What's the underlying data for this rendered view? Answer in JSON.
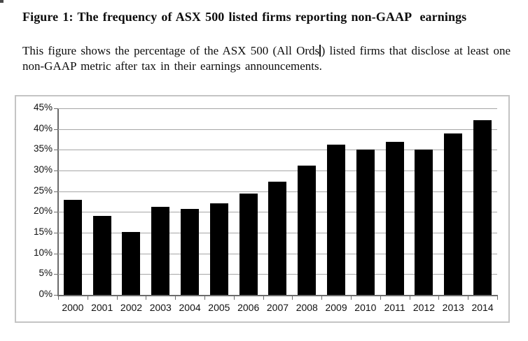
{
  "document": {
    "title": "Figure 1: The frequency of ASX 500 listed firms reporting non-GAAP  earnings",
    "description_part1": "This figure shows the percentage of the ASX 500 (All Ords",
    "description_part2": ") listed firms that disclose at least one non-GAAP metric after tax in their earnings announcements."
  },
  "chart_data": {
    "type": "bar",
    "title": "Figure 1: The frequency of ASX 500 listed firms reporting non-GAAP earnings",
    "subtitle": "This figure shows the percentage of the ASX 500 (All Ords) listed firms that disclose at least one non-GAAP metric after tax in their earnings announcements.",
    "categories": [
      "2000",
      "2001",
      "2002",
      "2003",
      "2004",
      "2005",
      "2006",
      "2007",
      "2008",
      "2009",
      "2010",
      "2011",
      "2012",
      "2013",
      "2014"
    ],
    "values": [
      22.9,
      19.1,
      15.2,
      21.2,
      20.7,
      22.1,
      24.5,
      27.3,
      31.2,
      36.3,
      35.0,
      36.9,
      35.0,
      39.0,
      42.2
    ],
    "unit": "%",
    "xlabel": "",
    "ylabel": "",
    "ylim": [
      0,
      45
    ],
    "ytick_step": 5,
    "ytick_labels": [
      "0%",
      "5%",
      "10%",
      "15%",
      "20%",
      "25%",
      "30%",
      "35%",
      "40%",
      "45%"
    ],
    "grid": true,
    "legend": "none",
    "bar_color": "#000000",
    "gridline_color": "#a6a6a6",
    "axis_color": "#6b6b6b",
    "frame_color": "#c4c4c4"
  }
}
